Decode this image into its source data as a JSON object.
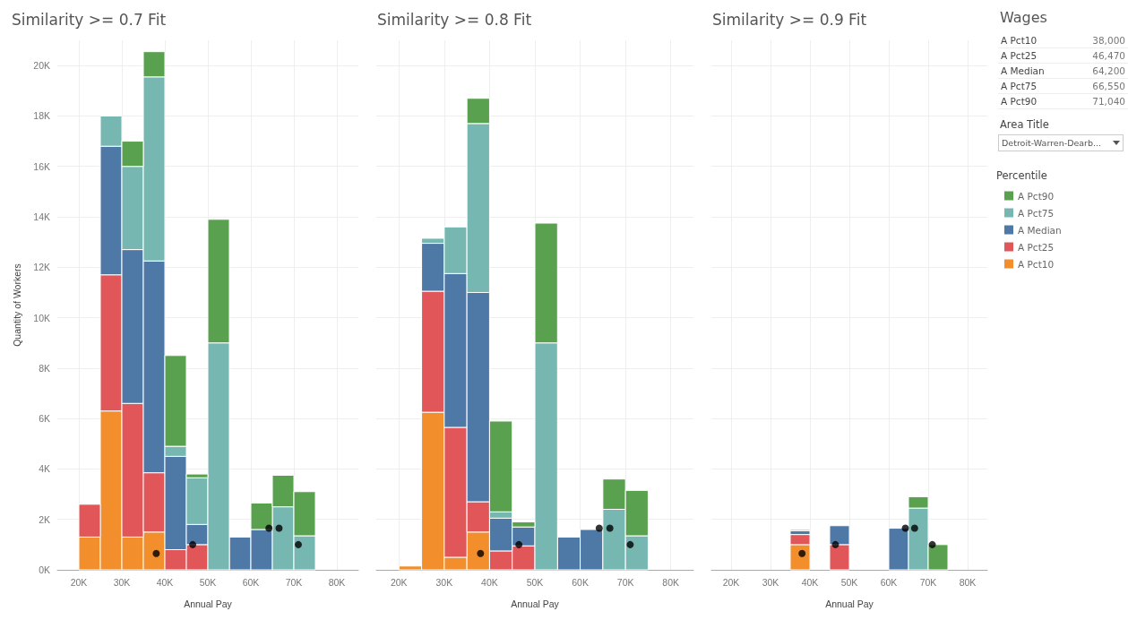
{
  "chart_data": [
    {
      "type": "bar",
      "title": "Similarity >= 0.7 Fit",
      "xlabel": "Annual Pay",
      "ylabel": "Quantity of Workers",
      "stacked": true,
      "grid": true,
      "marker": "circle",
      "x": [
        22500,
        27500,
        32500,
        37500,
        42500,
        47500,
        52500,
        57500,
        62500,
        67500,
        72500
      ],
      "xlim": [
        15000,
        85000
      ],
      "xticks": [
        {
          "value": 20000,
          "label": "20K"
        },
        {
          "value": 30000,
          "label": "30K"
        },
        {
          "value": 40000,
          "label": "40K"
        },
        {
          "value": 50000,
          "label": "50K"
        },
        {
          "value": 60000,
          "label": "60K"
        },
        {
          "value": 70000,
          "label": "70K"
        },
        {
          "value": 80000,
          "label": "80K"
        }
      ],
      "ylim": [
        0,
        21000
      ],
      "yticks": [
        {
          "value": 0,
          "label": "0K"
        },
        {
          "value": 2000,
          "label": "2K"
        },
        {
          "value": 4000,
          "label": "4K"
        },
        {
          "value": 6000,
          "label": "6K"
        },
        {
          "value": 8000,
          "label": "8K"
        },
        {
          "value": 10000,
          "label": "10K"
        },
        {
          "value": 12000,
          "label": "12K"
        },
        {
          "value": 14000,
          "label": "14K"
        },
        {
          "value": 16000,
          "label": "16K"
        },
        {
          "value": 18000,
          "label": "18K"
        },
        {
          "value": 20000,
          "label": "20K"
        }
      ],
      "series": [
        {
          "color": "#f28e2b",
          "values": [
            1300,
            6300,
            1300,
            1500,
            null,
            null,
            null,
            null,
            null,
            null,
            null
          ]
        },
        {
          "color": "#e15759",
          "values": [
            1300,
            5400,
            5300,
            2350,
            800,
            1000,
            null,
            null,
            null,
            null,
            null
          ]
        },
        {
          "color": "#4e79a7",
          "values": [
            null,
            5100,
            6100,
            8400,
            3700,
            800,
            null,
            1300,
            1600,
            null,
            null
          ]
        },
        {
          "color": "#76b7b2",
          "values": [
            null,
            1200,
            3300,
            7300,
            400,
            1850,
            9000,
            null,
            null,
            2500,
            1350
          ]
        },
        {
          "color": "#59a14f",
          "values": [
            null,
            null,
            1000,
            1000,
            3600,
            150,
            4900,
            null,
            1050,
            1250,
            1750
          ]
        },
        {
          "type": "scatter",
          "color": "#000000",
          "x": [
            38000,
            46470,
            64200,
            66550,
            71040
          ],
          "values": [
            650,
            1000,
            1650,
            1650,
            1000
          ]
        }
      ]
    },
    {
      "type": "bar",
      "title": "Similarity >= 0.8 Fit",
      "xlabel": "Annual Pay",
      "stacked": true,
      "grid": true,
      "marker": "circle",
      "tick_labels": "x",
      "x": [
        22500,
        27500,
        32500,
        37500,
        42500,
        47500,
        52500,
        57500,
        62500,
        67500,
        72500
      ],
      "xlim": [
        15000,
        85000
      ],
      "xticks": [
        {
          "value": 20000,
          "label": "20K"
        },
        {
          "value": 30000,
          "label": "30K"
        },
        {
          "value": 40000,
          "label": "40K"
        },
        {
          "value": 50000,
          "label": "50K"
        },
        {
          "value": 60000,
          "label": "60K"
        },
        {
          "value": 70000,
          "label": "70K"
        },
        {
          "value": 80000,
          "label": "80K"
        }
      ],
      "ylim": [
        0,
        21000
      ],
      "yticks": [
        0,
        2000,
        4000,
        6000,
        8000,
        10000,
        12000,
        14000,
        16000,
        18000,
        20000
      ],
      "series": [
        {
          "color": "#f28e2b",
          "values": [
            150,
            6250,
            500,
            1500,
            null,
            null,
            null,
            null,
            null,
            null,
            null
          ]
        },
        {
          "color": "#e15759",
          "values": [
            null,
            4800,
            5150,
            1200,
            750,
            950,
            null,
            null,
            null,
            null,
            null
          ]
        },
        {
          "color": "#4e79a7",
          "values": [
            null,
            1900,
            6100,
            8300,
            1300,
            750,
            null,
            1300,
            1600,
            null,
            null
          ]
        },
        {
          "color": "#76b7b2",
          "values": [
            null,
            200,
            1850,
            6700,
            250,
            null,
            9000,
            null,
            null,
            2400,
            1350
          ]
        },
        {
          "color": "#59a14f",
          "values": [
            null,
            null,
            null,
            1000,
            3600,
            200,
            4750,
            null,
            null,
            1200,
            1800
          ]
        },
        {
          "type": "scatter",
          "color": "#000000",
          "x": [
            38000,
            46470,
            64200,
            66550,
            71040
          ],
          "values": [
            650,
            1000,
            1650,
            1650,
            1000
          ]
        }
      ]
    },
    {
      "type": "bar",
      "title": "Similarity >= 0.9 Fit",
      "xlabel": "Annual Pay",
      "stacked": true,
      "grid": true,
      "marker": "circle",
      "tick_labels": "x",
      "legend": "right",
      "legend_title": "Percentile",
      "x": [
        37500,
        47500,
        62500,
        67500,
        72500
      ],
      "xlim": [
        15000,
        85000
      ],
      "xticks": [
        {
          "value": 20000,
          "label": "20K"
        },
        {
          "value": 30000,
          "label": "30K"
        },
        {
          "value": 40000,
          "label": "40K"
        },
        {
          "value": 50000,
          "label": "50K"
        },
        {
          "value": 60000,
          "label": "60K"
        },
        {
          "value": 70000,
          "label": "70K"
        },
        {
          "value": 80000,
          "label": "80K"
        }
      ],
      "ylim": [
        0,
        21000
      ],
      "yticks": [
        0,
        2000,
        4000,
        6000,
        8000,
        10000,
        12000,
        14000,
        16000,
        18000,
        20000
      ],
      "series": [
        {
          "name": "A Pct10",
          "color": "#f28e2b",
          "values": [
            1000,
            null,
            null,
            null,
            null
          ]
        },
        {
          "name": "A Pct25",
          "color": "#e15759",
          "values": [
            400,
            1000,
            null,
            null,
            null
          ]
        },
        {
          "name": "A Median",
          "color": "#4e79a7",
          "values": [
            150,
            750,
            1650,
            null,
            null
          ]
        },
        {
          "name": "A Pct75",
          "color": "#76b7b2",
          "values": [
            50,
            null,
            null,
            2450,
            null
          ]
        },
        {
          "name": "A Pct90",
          "color": "#59a14f",
          "values": [
            null,
            null,
            null,
            450,
            1000
          ]
        },
        {
          "type": "scatter",
          "color": "#000000",
          "x": [
            38000,
            46470,
            64200,
            66550,
            71040
          ],
          "values": [
            650,
            1000,
            1650,
            1650,
            1000
          ]
        }
      ]
    },
    {
      "type": "other",
      "title": "Wages",
      "annotations": [
        "A Pct10",
        "38,000",
        "A Pct25",
        "46,470",
        "A Median",
        "64,200",
        "A Pct75",
        "66,550",
        "A Pct90",
        "71,040",
        "Area Title",
        "Detroit-Warren-Dearb..."
      ]
    }
  ]
}
